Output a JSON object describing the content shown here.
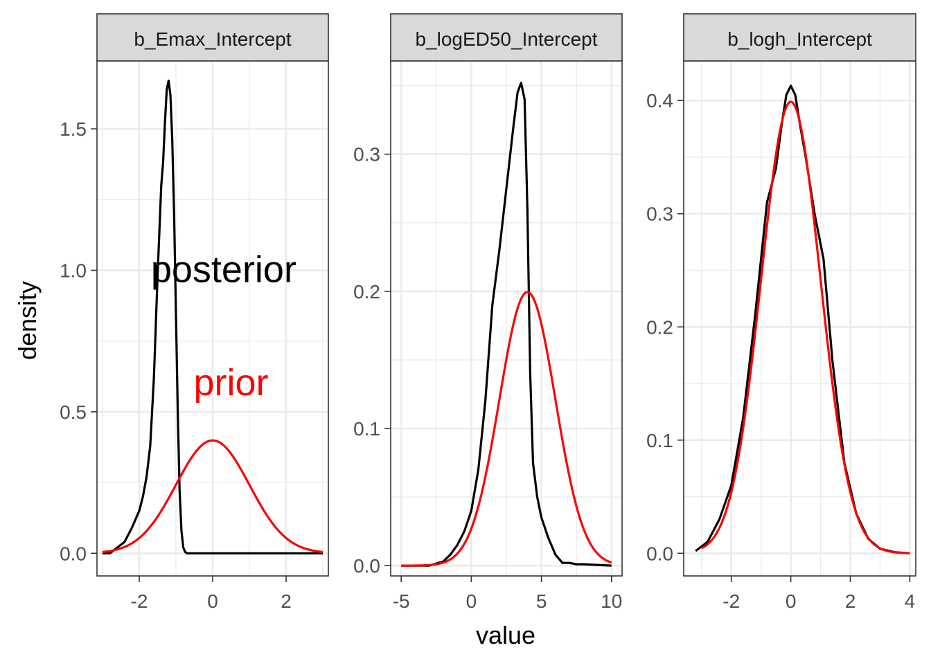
{
  "chart_data": {
    "type": "line",
    "xlabel": "value",
    "ylabel": "density",
    "colors": {
      "posterior": "#000000",
      "prior": "#ff0000",
      "strip": "#d9d9d9",
      "grid": "#ebebeb",
      "axis_text": "#4d4d4d"
    },
    "annotations": [
      {
        "panel": 0,
        "text": "posterior",
        "x": 0.3,
        "y": 1.0,
        "color": "#000000"
      },
      {
        "panel": 0,
        "text": "prior",
        "x": 0.5,
        "y": 0.6,
        "color": "#ff0000"
      }
    ],
    "panels": [
      {
        "title": "b_Emax_Intercept",
        "xlim": [
          -3.15,
          3.15
        ],
        "ylim": [
          -0.08,
          1.74
        ],
        "xticks": [
          -2,
          0,
          2
        ],
        "xtick_labels": [
          "-2",
          "0",
          "2"
        ],
        "yticks": [
          0,
          0.5,
          1.0,
          1.5
        ],
        "ytick_labels": [
          "0.0",
          "0.5",
          "1.0",
          "1.5"
        ],
        "series": [
          {
            "key": "posterior",
            "x": [
              -3.0,
              -2.8,
              -2.6,
              -2.4,
              -2.2,
              -2.0,
              -1.9,
              -1.8,
              -1.7,
              -1.6,
              -1.5,
              -1.4,
              -1.35,
              -1.3,
              -1.25,
              -1.2,
              -1.15,
              -1.1,
              -1.05,
              -1.0,
              -0.95,
              -0.9,
              -0.85,
              -0.8,
              -0.75,
              -0.7,
              -0.6,
              -0.4,
              0.0,
              1.0,
              2.0,
              3.0
            ],
            "y": [
              0.0,
              0.0,
              0.02,
              0.04,
              0.09,
              0.15,
              0.2,
              0.27,
              0.38,
              0.62,
              0.98,
              1.3,
              1.38,
              1.52,
              1.64,
              1.67,
              1.62,
              1.46,
              1.2,
              0.85,
              0.5,
              0.22,
              0.08,
              0.02,
              0.005,
              0.0,
              0.0,
              0.0,
              0.0,
              0.0,
              0.0,
              0.0
            ]
          },
          {
            "key": "prior",
            "fn": "normal",
            "mean": 0,
            "sd": 1,
            "range": [
              -3,
              3
            ]
          }
        ]
      },
      {
        "title": "b_logED50_Intercept",
        "xlim": [
          -5.75,
          10.75
        ],
        "ylim": [
          -0.0075,
          0.368
        ],
        "xticks": [
          -5,
          0,
          5,
          10
        ],
        "xtick_labels": [
          "-5",
          "0",
          "5",
          "10"
        ],
        "yticks": [
          0,
          0.1,
          0.2,
          0.3
        ],
        "ytick_labels": [
          "0.0",
          "0.1",
          "0.2",
          "0.3"
        ],
        "series": [
          {
            "key": "posterior",
            "x": [
              -5.0,
              -3.0,
              -2.0,
              -1.5,
              -1.0,
              -0.5,
              0.0,
              0.5,
              1.0,
              1.5,
              2.0,
              2.5,
              3.0,
              3.3,
              3.55,
              3.8,
              4.0,
              4.2,
              4.4,
              4.7,
              5.0,
              5.5,
              6.0,
              6.5,
              7.0,
              7.5,
              8.0,
              10.0
            ],
            "y": [
              0.0,
              0.0,
              0.003,
              0.008,
              0.015,
              0.025,
              0.04,
              0.07,
              0.12,
              0.19,
              0.23,
              0.275,
              0.32,
              0.345,
              0.352,
              0.34,
              0.26,
              0.14,
              0.075,
              0.05,
              0.035,
              0.02,
              0.008,
              0.002,
              0.002,
              0.001,
              0.001,
              0.0
            ]
          },
          {
            "key": "prior",
            "fn": "normal",
            "mean": 4,
            "sd": 2,
            "range": [
              -5,
              10
            ]
          }
        ]
      },
      {
        "title": "b_logh_Intercept",
        "xlim": [
          -3.6,
          4.2
        ],
        "ylim": [
          -0.02,
          0.435
        ],
        "xticks": [
          -2,
          0,
          2,
          4
        ],
        "xtick_labels": [
          "-2",
          "0",
          "2",
          "4"
        ],
        "yticks": [
          0,
          0.1,
          0.2,
          0.3,
          0.4
        ],
        "ytick_labels": [
          "0.0",
          "0.1",
          "0.2",
          "0.3",
          "0.4"
        ],
        "series": [
          {
            "key": "posterior",
            "x": [
              -3.2,
              -2.8,
              -2.4,
              -2.0,
              -1.6,
              -1.2,
              -0.8,
              -0.5,
              -0.3,
              -0.15,
              0.0,
              0.15,
              0.3,
              0.5,
              0.8,
              1.1,
              1.4,
              1.8,
              2.2,
              2.6,
              3.0,
              3.5,
              4.0
            ],
            "y": [
              0.002,
              0.01,
              0.03,
              0.06,
              0.12,
              0.21,
              0.31,
              0.34,
              0.38,
              0.405,
              0.413,
              0.405,
              0.38,
              0.35,
              0.3,
              0.26,
              0.17,
              0.08,
              0.035,
              0.013,
              0.004,
              0.001,
              0.0
            ]
          },
          {
            "key": "prior",
            "fn": "normal",
            "mean": 0,
            "sd": 1,
            "range": [
              -3,
              4
            ]
          }
        ]
      }
    ]
  }
}
